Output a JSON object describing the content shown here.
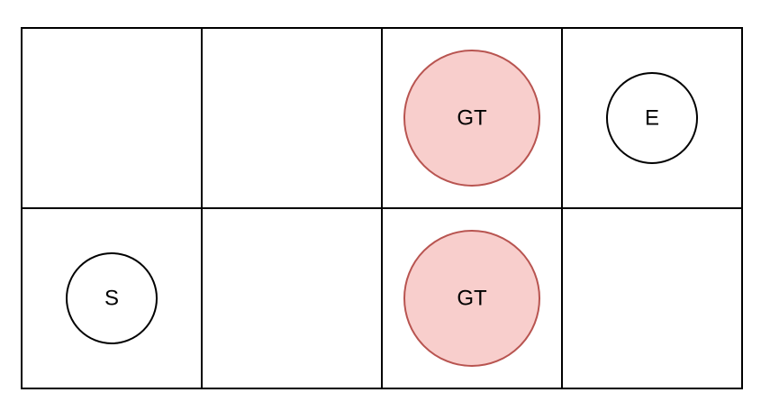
{
  "grid": {
    "rows": 2,
    "cols": 4,
    "line_color": "#000000"
  },
  "nodes": [
    {
      "label": "GT",
      "row": 0,
      "col": 2,
      "size": "large",
      "fill": "#f8cecc",
      "stroke": "#b85450"
    },
    {
      "label": "E",
      "row": 0,
      "col": 3,
      "size": "small",
      "fill": "#ffffff",
      "stroke": "#000000"
    },
    {
      "label": "S",
      "row": 1,
      "col": 0,
      "size": "small",
      "fill": "#ffffff",
      "stroke": "#000000"
    },
    {
      "label": "GT",
      "row": 1,
      "col": 2,
      "size": "large",
      "fill": "#f8cecc",
      "stroke": "#b85450"
    }
  ]
}
